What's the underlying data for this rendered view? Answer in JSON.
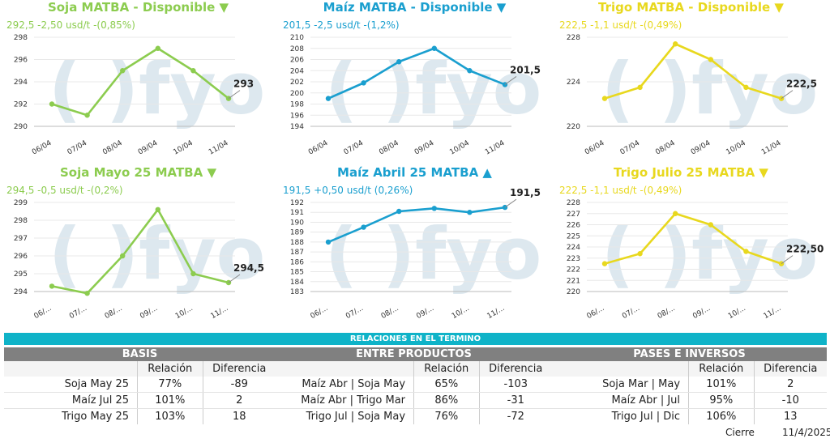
{
  "colors": {
    "soja": "#8ccc4f",
    "maiz": "#1a9fcf",
    "trigo": "#e8d81e",
    "band": "#0fb3c8",
    "header_gray": "#808080",
    "watermark": "#dde8ef"
  },
  "watermark": "( )fyo",
  "chart_data": [
    {
      "type": "line",
      "color_key": "soja",
      "title": "Soja MATBA - Disponible ▼",
      "subtitle": "292,5 -2,50 usd/t -(0,85%)",
      "categories": [
        "06/04",
        "07/04",
        "08/04",
        "09/04",
        "10/04",
        "11/04"
      ],
      "values": [
        292,
        291,
        295,
        297,
        295,
        292.5
      ],
      "y_ticks": [
        290,
        292,
        294,
        296,
        298
      ],
      "ylim": [
        290,
        298
      ],
      "end_label": "293"
    },
    {
      "type": "line",
      "color_key": "maiz",
      "title": "Maíz MATBA - Disponible ▼",
      "subtitle": "201,5 -2,5 usd/t -(1,2%)",
      "categories": [
        "06/04",
        "07/04",
        "08/04",
        "09/04",
        "10/04",
        "11/04"
      ],
      "values": [
        199,
        201.8,
        205.6,
        208,
        204,
        201.5
      ],
      "y_ticks": [
        194,
        196,
        198,
        200,
        202,
        204,
        206,
        208,
        210
      ],
      "ylim": [
        194,
        210
      ],
      "end_label": "201,5"
    },
    {
      "type": "line",
      "color_key": "trigo",
      "title": "Trigo MATBA - Disponible ▼",
      "subtitle": "222,5 -1,1 usd/t -(0,49%)",
      "categories": [
        "06/04",
        "07/04",
        "08/04",
        "09/04",
        "10/04",
        "11/04"
      ],
      "values": [
        222.5,
        223.5,
        227.4,
        226,
        223.5,
        222.5
      ],
      "y_ticks": [
        220,
        224,
        228
      ],
      "ylim": [
        220,
        228
      ],
      "end_label": "222,5"
    },
    {
      "type": "line",
      "color_key": "soja",
      "title": "Soja Mayo 25 MATBA ▼",
      "subtitle": "294,5 -0,5 usd/t -(0,2%)",
      "categories": [
        "06/...",
        "07/...",
        "08/...",
        "09/...",
        "10/...",
        "11/..."
      ],
      "values": [
        294.3,
        293.9,
        296,
        298.6,
        295,
        294.5
      ],
      "y_ticks": [
        294,
        295,
        296,
        297,
        298,
        299
      ],
      "ylim": [
        294,
        299
      ],
      "end_label": "294,5"
    },
    {
      "type": "line",
      "color_key": "maiz",
      "title": "Maíz Abril 25 MATBA ▲",
      "subtitle": "191,5 +0,50 usd/t (0,26%)",
      "categories": [
        "06/...",
        "07/...",
        "08/...",
        "09/...",
        "10/...",
        "11/..."
      ],
      "values": [
        188,
        189.5,
        191.1,
        191.4,
        191,
        191.5
      ],
      "y_ticks": [
        183,
        184,
        185,
        186,
        187,
        188,
        189,
        190,
        191,
        192
      ],
      "ylim": [
        183,
        192
      ],
      "end_label": "191,5"
    },
    {
      "type": "line",
      "color_key": "trigo",
      "title": "Trigo Julio 25 MATBA ▼",
      "subtitle": "222,5 -1,1 usd/t -(0,49%)",
      "categories": [
        "06/...",
        "07/...",
        "08/...",
        "09/...",
        "10/...",
        "11/..."
      ],
      "values": [
        222.5,
        223.4,
        227,
        226,
        223.6,
        222.5
      ],
      "y_ticks": [
        220,
        221,
        222,
        223,
        224,
        225,
        226,
        227,
        228
      ],
      "ylim": [
        220,
        228
      ],
      "end_label": "222,50"
    }
  ],
  "relations": {
    "band_title": "RELACIONES EN EL TERMINO",
    "col_relacion": "Relación",
    "col_diferencia": "Diferencia",
    "basis": {
      "title": "BASIS",
      "rows": [
        {
          "name": "Soja May 25",
          "relacion": "77%",
          "diferencia": "-89"
        },
        {
          "name": "Maíz Jul 25",
          "relacion": "101%",
          "diferencia": "2"
        },
        {
          "name": "Trigo May 25",
          "relacion": "103%",
          "diferencia": "18"
        }
      ]
    },
    "entre": {
      "title": "ENTRE PRODUCTOS",
      "rows": [
        {
          "name": "Maíz Abr | Soja May",
          "relacion": "65%",
          "diferencia": "-103"
        },
        {
          "name": "Maíz Abr | Trigo Mar",
          "relacion": "86%",
          "diferencia": "-31"
        },
        {
          "name": "Trigo Jul | Soja May",
          "relacion": "76%",
          "diferencia": "-72"
        }
      ]
    },
    "pases": {
      "title": "PASES E INVERSOS",
      "rows": [
        {
          "name": "Soja Mar | May",
          "relacion": "101%",
          "diferencia": "2"
        },
        {
          "name": "Maíz Abr | Jul",
          "relacion": "95%",
          "diferencia": "-10"
        },
        {
          "name": "Trigo Jul | Dic",
          "relacion": "106%",
          "diferencia": "13"
        }
      ]
    }
  },
  "footer": {
    "label": "Cierre",
    "date": "11/4/2025"
  }
}
